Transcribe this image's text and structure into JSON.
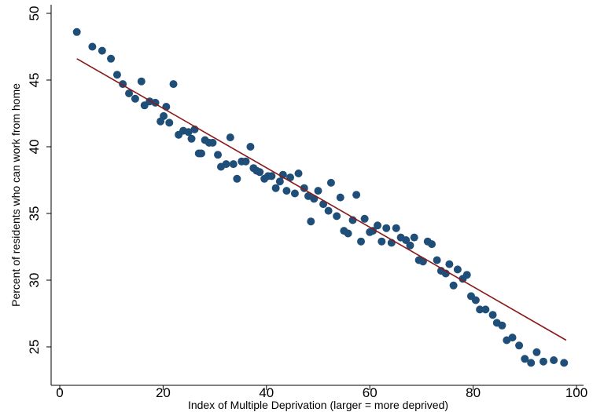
{
  "chart_data": {
    "type": "scatter",
    "title": "",
    "xlabel": "Index of Multiple Deprivation (larger = more deprived)",
    "ylabel": "Percent of residents who can work from home",
    "xlim": [
      0,
      100
    ],
    "ylim": [
      23.5,
      50
    ],
    "xticks": [
      0,
      20,
      40,
      60,
      80,
      100
    ],
    "yticks": [
      25,
      30,
      35,
      40,
      45,
      50
    ],
    "grid": false,
    "legend": "none",
    "colors": {
      "points": "#1f4e79",
      "fit_line": "#8b1a1a"
    },
    "series": [
      {
        "kind": "points",
        "x": [
          3.3,
          6.3,
          8.2,
          9.9,
          11.1,
          12.2,
          13.4,
          14.6,
          15.8,
          16.4,
          17.4,
          18.5,
          19.5,
          20.1,
          20.6,
          21.2,
          22.0,
          23.0,
          23.9,
          24.9,
          25.5,
          26.1,
          26.9,
          27.4,
          28.1,
          28.9,
          29.6,
          30.6,
          31.2,
          32.2,
          33.0,
          33.6,
          34.3,
          35.2,
          36.0,
          36.9,
          37.5,
          38.1,
          38.7,
          39.6,
          40.3,
          41.0,
          41.8,
          42.6,
          43.2,
          43.9,
          44.6,
          45.5,
          46.2,
          47.3,
          48.1,
          48.6,
          49.2,
          50.0,
          51.0,
          52.0,
          52.5,
          53.6,
          54.3,
          55.0,
          55.8,
          56.7,
          57.4,
          58.3,
          59.0,
          60.0,
          60.6,
          61.5,
          62.3,
          63.2,
          64.2,
          65.1,
          66.0,
          67.0,
          67.8,
          68.6,
          69.5,
          70.3,
          71.2,
          72.0,
          73.0,
          73.8,
          74.7,
          75.4,
          76.2,
          77.0,
          78.0,
          78.8,
          79.6,
          80.5,
          81.3,
          82.4,
          83.8,
          84.6,
          85.6,
          86.5,
          87.6,
          88.9,
          90.0,
          91.2,
          92.3,
          93.6,
          95.6,
          97.6
        ],
        "y": [
          48.6,
          47.5,
          47.2,
          46.6,
          45.4,
          44.7,
          44.0,
          43.6,
          44.9,
          43.1,
          43.4,
          43.3,
          41.9,
          42.3,
          43.0,
          41.8,
          44.7,
          40.9,
          41.2,
          41.1,
          40.6,
          41.3,
          39.5,
          39.5,
          40.5,
          40.3,
          40.3,
          39.4,
          38.5,
          38.7,
          40.7,
          38.7,
          37.6,
          38.9,
          38.9,
          40.0,
          38.4,
          38.2,
          38.1,
          37.6,
          37.8,
          37.8,
          36.9,
          37.4,
          37.9,
          36.7,
          37.7,
          36.5,
          38.0,
          36.9,
          36.3,
          34.4,
          36.1,
          36.7,
          35.7,
          35.2,
          37.3,
          34.8,
          36.2,
          33.7,
          33.5,
          34.5,
          36.4,
          32.9,
          34.6,
          33.6,
          33.7,
          34.1,
          32.9,
          33.9,
          32.8,
          33.9,
          33.2,
          33.0,
          32.6,
          33.2,
          31.5,
          31.4,
          32.9,
          32.7,
          31.5,
          30.7,
          30.5,
          31.2,
          29.6,
          30.8,
          30.1,
          30.4,
          28.8,
          28.5,
          27.8,
          27.8,
          27.4,
          26.8,
          26.6,
          25.5,
          25.7,
          25.1,
          24.1,
          23.8,
          24.6,
          23.9,
          24.0,
          23.8
        ]
      },
      {
        "kind": "fit_line",
        "x": [
          3.3,
          98.0
        ],
        "y": [
          46.6,
          25.5
        ]
      }
    ]
  }
}
